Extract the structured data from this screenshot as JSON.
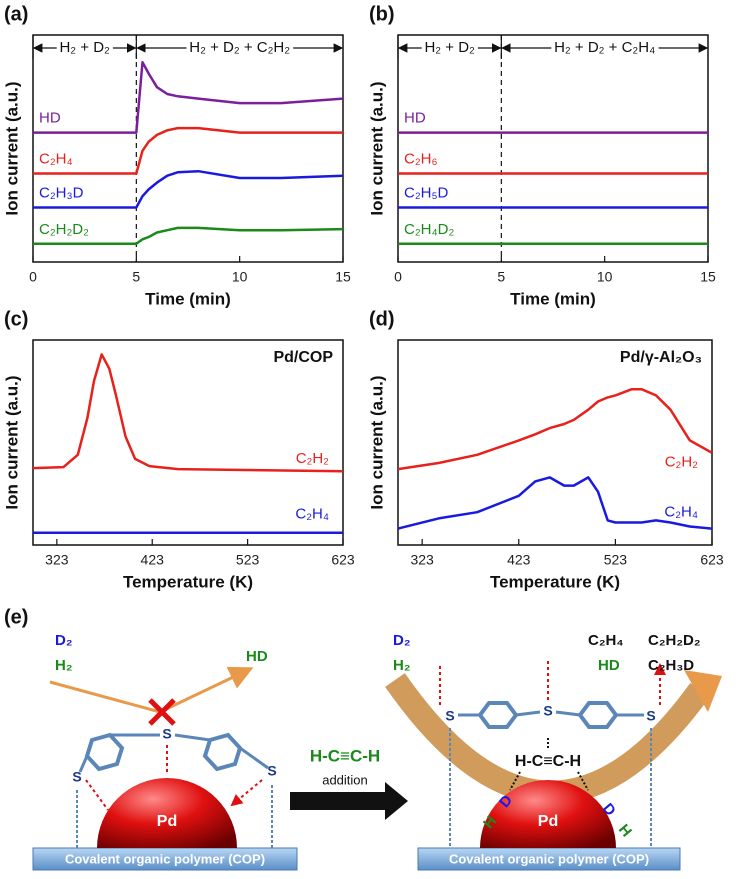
{
  "chart_data": [
    {
      "type": "line",
      "panel_label": "(a)",
      "x_label": "Time (min)",
      "y_label": "Ion current (a.u.)",
      "x": [
        0,
        5,
        5.3,
        5.6,
        6,
        6.5,
        7,
        8,
        10,
        12,
        15
      ],
      "xlim": [
        0,
        15
      ],
      "xticks": [
        0,
        5,
        10,
        15
      ],
      "ylim": [
        0,
        10
      ],
      "vline": 5,
      "regions": [
        {
          "label": "H₂ + D₂",
          "from": 0,
          "to": 5
        },
        {
          "label": "H₂ + D₂ + C₂H₂",
          "from": 5,
          "to": 15
        }
      ],
      "series": [
        {
          "name": "HD",
          "color": "#7b1f9c",
          "values": [
            5.7,
            5.7,
            8.8,
            8.3,
            7.7,
            7.4,
            7.3,
            7.2,
            7.0,
            7.0,
            7.2
          ]
        },
        {
          "name": "C₂H₄",
          "color": "#e8211c",
          "values": [
            3.9,
            3.9,
            4.9,
            5.3,
            5.6,
            5.8,
            5.9,
            5.9,
            5.7,
            5.7,
            5.7
          ]
        },
        {
          "name": "C₂H₃D",
          "color": "#1a1adf",
          "values": [
            2.4,
            2.4,
            2.9,
            3.2,
            3.5,
            3.8,
            3.95,
            4.0,
            3.7,
            3.7,
            3.8
          ]
        },
        {
          "name": "C₂H₂D₂",
          "color": "#1a8a1a",
          "values": [
            0.8,
            0.8,
            1.0,
            1.1,
            1.3,
            1.4,
            1.5,
            1.5,
            1.4,
            1.4,
            1.45
          ]
        }
      ]
    },
    {
      "type": "line",
      "panel_label": "(b)",
      "x_label": "Time (min)",
      "y_label": "Ion current (a.u.)",
      "x": [
        0,
        15
      ],
      "xlim": [
        0,
        15
      ],
      "xticks": [
        0,
        5,
        10,
        15
      ],
      "ylim": [
        0,
        10
      ],
      "vline": 5,
      "regions": [
        {
          "label": "H₂ + D₂",
          "from": 0,
          "to": 5
        },
        {
          "label": "H₂ + D₂ + C₂H₄",
          "from": 5,
          "to": 15
        }
      ],
      "series": [
        {
          "name": "HD",
          "color": "#7b1f9c",
          "values": [
            5.7,
            5.7
          ]
        },
        {
          "name": "C₂H₆",
          "color": "#e8211c",
          "values": [
            3.9,
            3.9
          ]
        },
        {
          "name": "C₂H₅D",
          "color": "#1a1adf",
          "values": [
            2.4,
            2.4
          ]
        },
        {
          "name": "C₂H₄D₂",
          "color": "#1a8a1a",
          "values": [
            0.8,
            0.8
          ]
        }
      ]
    },
    {
      "type": "line",
      "panel_label": "(c)",
      "x_label": "Temperature (K)",
      "y_label": "Ion current (a.u.)",
      "annotation": "Pd/COP",
      "x": [
        298,
        330,
        345,
        355,
        362,
        370,
        378,
        385,
        395,
        405,
        420,
        450,
        623
      ],
      "xlim": [
        298,
        623
      ],
      "xticks": [
        323,
        423,
        523,
        623
      ],
      "ylim": [
        0,
        10
      ],
      "series": [
        {
          "name": "C₂H₂",
          "color": "#e8211c",
          "values": [
            3.75,
            3.8,
            4.4,
            6.2,
            8.0,
            9.3,
            8.6,
            7.3,
            5.3,
            4.2,
            3.85,
            3.7,
            3.6
          ]
        },
        {
          "name": "C₂H₄",
          "color": "#1a1adf",
          "values": [
            0.6,
            0.6,
            0.6,
            0.6,
            0.6,
            0.6,
            0.6,
            0.6,
            0.6,
            0.6,
            0.6,
            0.6,
            0.6
          ]
        }
      ]
    },
    {
      "type": "line",
      "panel_label": "(d)",
      "x_label": "Temperature (K)",
      "y_label": "Ion current (a.u.)",
      "annotation": "Pd/γ-Al₂O₃",
      "x": [
        298,
        340,
        380,
        423,
        440,
        455,
        470,
        480,
        495,
        505,
        515,
        523,
        540,
        550,
        565,
        580,
        600,
        623
      ],
      "xlim": [
        298,
        623
      ],
      "xticks": [
        323,
        423,
        523,
        623
      ],
      "ylim": [
        0,
        10
      ],
      "series": [
        {
          "name": "C₂H₂",
          "color": "#e8211c",
          "values": [
            3.7,
            4.0,
            4.4,
            5.1,
            5.4,
            5.7,
            5.9,
            6.1,
            6.6,
            7.0,
            7.2,
            7.3,
            7.6,
            7.6,
            7.3,
            6.6,
            5.1,
            4.5
          ]
        },
        {
          "name": "C₂H₄",
          "color": "#1a1adf",
          "values": [
            0.8,
            1.3,
            1.6,
            2.4,
            3.1,
            3.3,
            2.9,
            2.9,
            3.3,
            2.6,
            1.2,
            1.1,
            1.1,
            1.1,
            1.2,
            1.1,
            0.9,
            0.8
          ]
        }
      ]
    }
  ],
  "diagram": {
    "panel_label": "(e)",
    "left": {
      "gases": [
        "D₂",
        "H₂"
      ],
      "product": "HD",
      "s_labels": [
        "S",
        "S",
        "S"
      ],
      "metal": "Pd",
      "support": "Covalent organic polymer (COP)"
    },
    "reagent": "H-C≡C-H",
    "action": "addition",
    "right": {
      "gases": [
        "D₂",
        "H₂"
      ],
      "products": [
        "C₂H₄",
        "C₂H₂D₂",
        "HD",
        "C₂H₃D"
      ],
      "s_labels": [
        "S",
        "S",
        "S"
      ],
      "adsorbate": "H-C≡C-H",
      "bonds": [
        "D",
        "H",
        "D",
        "H"
      ],
      "metal": "Pd",
      "support": "Covalent organic polymer (COP)"
    }
  }
}
